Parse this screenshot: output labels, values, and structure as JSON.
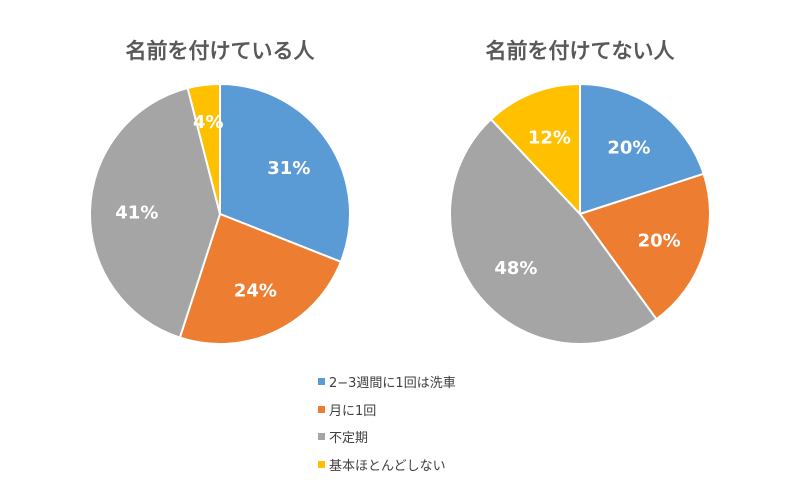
{
  "chart_data": [
    {
      "type": "pie",
      "title": "名前を付けている人",
      "categories": [
        "2−3週間に1回は洗車",
        "月に1回",
        "不定期",
        "基本ほとんどしない"
      ],
      "values": [
        31,
        24,
        41,
        4
      ],
      "value_labels": [
        "31%",
        "24%",
        "41%",
        "4%"
      ]
    },
    {
      "type": "pie",
      "title": "名前を付けてない人",
      "categories": [
        "2−3週間に1回は洗車",
        "月に1回",
        "不定期",
        "基本ほとんどしない"
      ],
      "values": [
        20,
        20,
        48,
        12
      ],
      "value_labels": [
        "20%",
        "20%",
        "48%",
        "12%"
      ]
    }
  ],
  "legend": {
    "placement": "bottom",
    "items": [
      {
        "label": "2−3週間に1回は洗車",
        "color": "#5b9bd5"
      },
      {
        "label": "月に1回",
        "color": "#ed7d31"
      },
      {
        "label": "不定期",
        "color": "#a5a5a5"
      },
      {
        "label": "基本ほとんどしない",
        "color": "#ffc000"
      }
    ]
  },
  "colors": [
    "#5b9bd5",
    "#ed7d31",
    "#a5a5a5",
    "#ffc000"
  ]
}
